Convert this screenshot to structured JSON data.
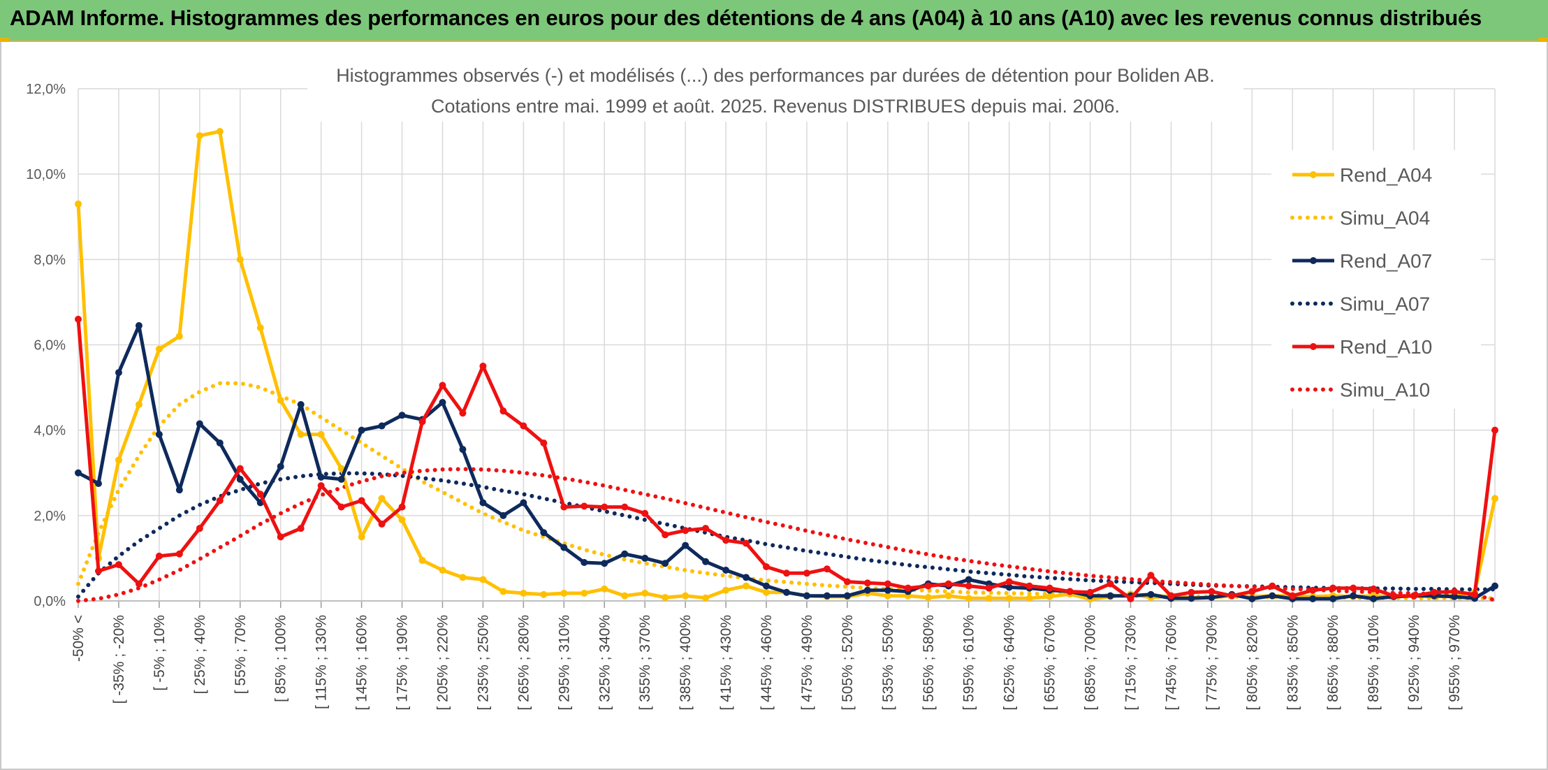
{
  "banner": {
    "title": "ADAM Informe. Histogrammes des performances en euros pour des détentions de 4 ans (A04) à 10 ans (A10) avec les revenus connus distribués"
  },
  "colors": {
    "banner_bg": "#7dc77a",
    "A04": "#ffc000",
    "A07": "#0e2a5c",
    "A10": "#ee1111"
  },
  "chart_data": {
    "type": "line",
    "title": "Histogrammes observés (-) et modélisés (...) des performances par durées de détention pour Boliden AB.",
    "subtitle": "Cotations entre mai. 1999 et août. 2025. Revenus DISTRIBUES depuis mai. 2006.",
    "ylim": [
      0,
      12
    ],
    "y_ticks": [
      "0,0%",
      "2,0%",
      "4,0%",
      "6,0%",
      "8,0%",
      "10,0%",
      "12,0%"
    ],
    "x_tick_labels": [
      "-50% <",
      "[ -35% ; -20%",
      "[ -5% ; 10%",
      "[ 25% ; 40%",
      "[ 55% ; 70%",
      "[ 85% ; 100%",
      "[ 115% ; 130%",
      "[ 145% ; 160%",
      "[ 175% ; 190%",
      "[ 205% ; 220%",
      "[ 235% ; 250%",
      "[ 265% ; 280%",
      "[ 295% ; 310%",
      "[ 325% ; 340%",
      "[ 355% ; 370%",
      "[ 385% ; 400%",
      "[ 415% ; 430%",
      "[ 445% ; 460%",
      "[ 475% ; 490%",
      "[ 505% ; 520%",
      "[ 535% ; 550%",
      "[ 565% ; 580%",
      "[ 595% ; 610%",
      "[ 625% ; 640%",
      "[ 655% ; 670%",
      "[ 685% ; 700%",
      "[ 715% ; 730%",
      "[ 745% ; 760%",
      "[ 775% ; 790%",
      "[ 805% ; 820%",
      "[ 835% ; 850%",
      "[ 865% ; 880%",
      "[ 895% ; 910%",
      "[ 925% ; 940%",
      "[ 955% ; 970%"
    ],
    "grid": true,
    "legend_position": "right",
    "series": [
      {
        "name": "Rend_A04",
        "style": "solid",
        "color": "#ffc000",
        "values": [
          9.3,
          1.0,
          3.3,
          4.6,
          5.9,
          6.2,
          10.9,
          11.0,
          8.0,
          6.4,
          4.7,
          3.9,
          3.9,
          3.1,
          1.5,
          2.4,
          1.9,
          0.95,
          0.72,
          0.55,
          0.5,
          0.22,
          0.18,
          0.15,
          0.18,
          0.18,
          0.28,
          0.12,
          0.18,
          0.08,
          0.12,
          0.07,
          0.25,
          0.35,
          0.2,
          0.2,
          0.12,
          0.1,
          0.1,
          0.18,
          0.12,
          0.12,
          0.08,
          0.12,
          0.06,
          0.06,
          0.06,
          0.06,
          0.1,
          0.16,
          0.04,
          0.1,
          0.16,
          0.08,
          0.12,
          0.08,
          0.08,
          0.12,
          0.1,
          0.12,
          0.12,
          0.1,
          0.12,
          0.1,
          0.12,
          0.1,
          0.12,
          0.1,
          0.12,
          0.2,
          2.4
        ]
      },
      {
        "name": "Simu_A04",
        "style": "dotted",
        "color": "#ffc000",
        "values": [
          0.4,
          1.6,
          2.6,
          3.4,
          4.1,
          4.6,
          4.9,
          5.1,
          5.1,
          5.0,
          4.8,
          4.6,
          4.3,
          4.0,
          3.7,
          3.4,
          3.1,
          2.8,
          2.55,
          2.3,
          2.05,
          1.85,
          1.65,
          1.5,
          1.35,
          1.2,
          1.08,
          0.97,
          0.88,
          0.8,
          0.72,
          0.65,
          0.59,
          0.53,
          0.48,
          0.44,
          0.4,
          0.36,
          0.33,
          0.3,
          0.28,
          0.26,
          0.24,
          0.22,
          0.2,
          0.19,
          0.18,
          0.17,
          0.16,
          0.15,
          0.14,
          0.13,
          0.12,
          0.12,
          0.11,
          0.1,
          0.1,
          0.1,
          0.09,
          0.09,
          0.08,
          0.08,
          0.08,
          0.07,
          0.07,
          0.07,
          0.06,
          0.06,
          0.06,
          0.06,
          0.06
        ]
      },
      {
        "name": "Rend_A07",
        "style": "solid",
        "color": "#0e2a5c",
        "values": [
          3.0,
          2.75,
          5.35,
          6.45,
          3.9,
          2.6,
          4.15,
          3.7,
          2.85,
          2.3,
          3.15,
          4.6,
          2.9,
          2.85,
          4.0,
          4.1,
          4.35,
          4.25,
          4.65,
          3.55,
          2.3,
          2.0,
          2.3,
          1.6,
          1.25,
          0.9,
          0.88,
          1.1,
          1.0,
          0.88,
          1.3,
          0.92,
          0.72,
          0.55,
          0.35,
          0.2,
          0.12,
          0.12,
          0.12,
          0.25,
          0.25,
          0.22,
          0.4,
          0.35,
          0.5,
          0.4,
          0.32,
          0.3,
          0.25,
          0.22,
          0.12,
          0.12,
          0.12,
          0.15,
          0.06,
          0.06,
          0.08,
          0.15,
          0.05,
          0.12,
          0.05,
          0.05,
          0.05,
          0.12,
          0.05,
          0.1,
          0.12,
          0.12,
          0.1,
          0.06,
          0.35
        ]
      },
      {
        "name": "Simu_A07",
        "style": "dotted",
        "color": "#0e2a5c",
        "values": [
          0.1,
          0.65,
          1.05,
          1.4,
          1.7,
          2.0,
          2.25,
          2.45,
          2.6,
          2.75,
          2.85,
          2.92,
          2.97,
          2.99,
          2.99,
          2.97,
          2.93,
          2.88,
          2.82,
          2.75,
          2.67,
          2.58,
          2.5,
          2.4,
          2.3,
          2.2,
          2.1,
          2.0,
          1.9,
          1.8,
          1.7,
          1.6,
          1.5,
          1.42,
          1.33,
          1.25,
          1.17,
          1.1,
          1.03,
          0.96,
          0.9,
          0.84,
          0.79,
          0.74,
          0.69,
          0.65,
          0.61,
          0.57,
          0.54,
          0.51,
          0.48,
          0.46,
          0.44,
          0.42,
          0.4,
          0.38,
          0.36,
          0.35,
          0.34,
          0.33,
          0.32,
          0.31,
          0.3,
          0.3,
          0.29,
          0.29,
          0.28,
          0.28,
          0.27,
          0.27,
          0.27
        ]
      },
      {
        "name": "Rend_A10",
        "style": "solid",
        "color": "#ee1111",
        "values": [
          6.6,
          0.7,
          0.85,
          0.4,
          1.05,
          1.1,
          1.7,
          2.35,
          3.1,
          2.5,
          1.5,
          1.7,
          2.7,
          2.2,
          2.35,
          1.8,
          2.2,
          4.2,
          5.05,
          4.4,
          5.5,
          4.45,
          4.1,
          3.7,
          2.2,
          2.22,
          2.2,
          2.2,
          2.05,
          1.55,
          1.65,
          1.7,
          1.42,
          1.35,
          0.8,
          0.65,
          0.65,
          0.75,
          0.45,
          0.42,
          0.4,
          0.3,
          0.35,
          0.4,
          0.35,
          0.3,
          0.45,
          0.35,
          0.3,
          0.22,
          0.2,
          0.4,
          0.05,
          0.6,
          0.12,
          0.2,
          0.22,
          0.12,
          0.22,
          0.35,
          0.12,
          0.25,
          0.3,
          0.3,
          0.28,
          0.12,
          0.12,
          0.2,
          0.22,
          0.15,
          4.0
        ]
      },
      {
        "name": "Simu_A10",
        "style": "dotted",
        "color": "#ee1111",
        "values": [
          0.0,
          0.05,
          0.15,
          0.3,
          0.5,
          0.72,
          0.98,
          1.25,
          1.52,
          1.8,
          2.05,
          2.28,
          2.48,
          2.65,
          2.8,
          2.92,
          3.0,
          3.05,
          3.08,
          3.09,
          3.08,
          3.05,
          3.0,
          2.94,
          2.87,
          2.79,
          2.7,
          2.6,
          2.5,
          2.4,
          2.29,
          2.18,
          2.07,
          1.96,
          1.85,
          1.75,
          1.64,
          1.54,
          1.44,
          1.35,
          1.26,
          1.17,
          1.09,
          1.01,
          0.94,
          0.87,
          0.81,
          0.75,
          0.69,
          0.64,
          0.59,
          0.55,
          0.51,
          0.47,
          0.44,
          0.41,
          0.38,
          0.35,
          0.33,
          0.3,
          0.28,
          0.26,
          0.24,
          0.22,
          0.21,
          0.19,
          0.18,
          0.16,
          0.15,
          0.14,
          0.02
        ]
      }
    ]
  }
}
